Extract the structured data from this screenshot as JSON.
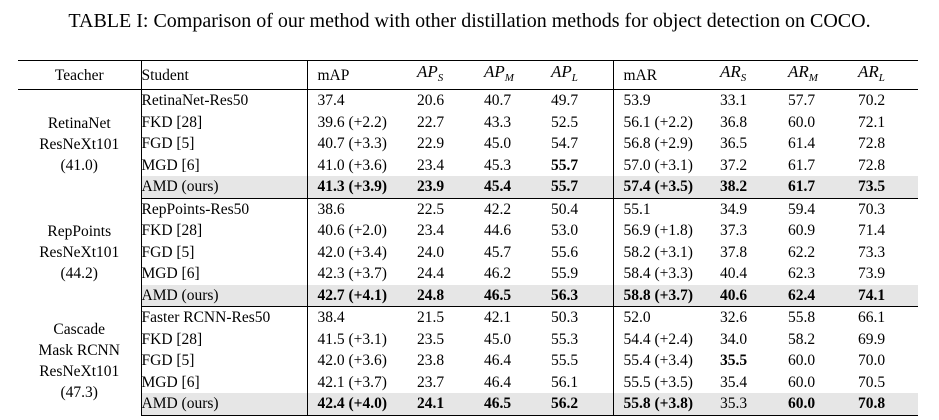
{
  "caption": "TABLE I: Comparison of our method with other distillation methods for object detection on COCO.",
  "headers": {
    "teacher": "Teacher",
    "student": "Student",
    "map": "mAP",
    "aps": {
      "base": "AP",
      "sub": "S"
    },
    "apm": {
      "base": "AP",
      "sub": "M"
    },
    "apl": {
      "base": "AP",
      "sub": "L"
    },
    "mar": "mAR",
    "ars": {
      "base": "AR",
      "sub": "S"
    },
    "arm": {
      "base": "AR",
      "sub": "M"
    },
    "arl": {
      "base": "AR",
      "sub": "L"
    }
  },
  "groups": [
    {
      "teacher_lines": [
        "RetinaNet",
        "ResNeXt101",
        "(41.0)"
      ],
      "rows": [
        {
          "student": "RetinaNet-Res50",
          "map": "37.4",
          "aps": "20.6",
          "apm": "40.7",
          "apl": "49.7",
          "mar": "53.9",
          "ars": "33.1",
          "arm": "57.7",
          "arl": "70.2",
          "bold": []
        },
        {
          "student": "FKD [28]",
          "map": "39.6 (+2.2)",
          "aps": "22.7",
          "apm": "43.3",
          "apl": "52.5",
          "mar": "56.1 (+2.2)",
          "ars": "36.8",
          "arm": "60.0",
          "arl": "72.1",
          "bold": []
        },
        {
          "student": "FGD [5]",
          "map": "40.7 (+3.3)",
          "aps": "22.9",
          "apm": "45.0",
          "apl": "54.7",
          "mar": "56.8 (+2.9)",
          "ars": "36.5",
          "arm": "61.4",
          "arl": "72.8",
          "bold": []
        },
        {
          "student": "MGD [6]",
          "map": "41.0 (+3.6)",
          "aps": "23.4",
          "apm": "45.3",
          "apl": "55.7",
          "mar": "57.0 (+3.1)",
          "ars": "37.2",
          "arm": "61.7",
          "arl": "72.8",
          "bold": [
            "apl"
          ]
        },
        {
          "student": "AMD (ours)",
          "map": "41.3 (+3.9)",
          "aps": "23.9",
          "apm": "45.4",
          "apl": "55.7",
          "mar": "57.4 (+3.5)",
          "ars": "38.2",
          "arm": "61.7",
          "arl": "73.5",
          "bold": [
            "map",
            "aps",
            "apm",
            "apl",
            "mar",
            "ars",
            "arm",
            "arl"
          ],
          "highlight": true
        }
      ]
    },
    {
      "teacher_lines": [
        "RepPoints",
        "ResNeXt101",
        "(44.2)"
      ],
      "rows": [
        {
          "student": "RepPoints-Res50",
          "map": "38.6",
          "aps": "22.5",
          "apm": "42.2",
          "apl": "50.4",
          "mar": "55.1",
          "ars": "34.9",
          "arm": "59.4",
          "arl": "70.3",
          "bold": []
        },
        {
          "student": "FKD [28]",
          "map": "40.6 (+2.0)",
          "aps": "23.4",
          "apm": "44.6",
          "apl": "53.0",
          "mar": "56.9 (+1.8)",
          "ars": "37.3",
          "arm": "60.9",
          "arl": "71.4",
          "bold": []
        },
        {
          "student": "FGD [5]",
          "map": "42.0 (+3.4)",
          "aps": "24.0",
          "apm": "45.7",
          "apl": "55.6",
          "mar": "58.2 (+3.1)",
          "ars": "37.8",
          "arm": "62.2",
          "arl": "73.3",
          "bold": []
        },
        {
          "student": "MGD [6]",
          "map": "42.3 (+3.7)",
          "aps": "24.4",
          "apm": "46.2",
          "apl": "55.9",
          "mar": "58.4 (+3.3)",
          "ars": "40.4",
          "arm": "62.3",
          "arl": "73.9",
          "bold": []
        },
        {
          "student": "AMD (ours)",
          "map": "42.7 (+4.1)",
          "aps": "24.8",
          "apm": "46.5",
          "apl": "56.3",
          "mar": "58.8 (+3.7)",
          "ars": "40.6",
          "arm": "62.4",
          "arl": "74.1",
          "bold": [
            "map",
            "aps",
            "apm",
            "apl",
            "mar",
            "ars",
            "arm",
            "arl"
          ],
          "highlight": true
        }
      ]
    },
    {
      "teacher_lines": [
        "Cascade",
        "Mask RCNN",
        "ResNeXt101",
        "(47.3)"
      ],
      "rows": [
        {
          "student": "Faster RCNN-Res50",
          "map": "38.4",
          "aps": "21.5",
          "apm": "42.1",
          "apl": "50.3",
          "mar": "52.0",
          "ars": "32.6",
          "arm": "55.8",
          "arl": "66.1",
          "bold": []
        },
        {
          "student": "FKD [28]",
          "map": "41.5 (+3.1)",
          "aps": "23.5",
          "apm": "45.0",
          "apl": "55.3",
          "mar": "54.4 (+2.4)",
          "ars": "34.0",
          "arm": "58.2",
          "arl": "69.9",
          "bold": []
        },
        {
          "student": "FGD [5]",
          "map": "42.0 (+3.6)",
          "aps": "23.8",
          "apm": "46.4",
          "apl": "55.5",
          "mar": "55.4 (+3.4)",
          "ars": "35.5",
          "arm": "60.0",
          "arl": "70.0",
          "bold": [
            "ars"
          ]
        },
        {
          "student": "MGD [6]",
          "map": "42.1 (+3.7)",
          "aps": "23.7",
          "apm": "46.4",
          "apl": "56.1",
          "mar": "55.5 (+3.5)",
          "ars": "35.4",
          "arm": "60.0",
          "arl": "70.5",
          "bold": []
        },
        {
          "student": "AMD (ours)",
          "map": "42.4 (+4.0)",
          "aps": "24.1",
          "apm": "46.5",
          "apl": "56.2",
          "mar": "55.8 (+3.8)",
          "ars": "35.3",
          "arm": "60.0",
          "arl": "70.8",
          "bold": [
            "map",
            "aps",
            "apm",
            "apl",
            "mar",
            "arm",
            "arl"
          ],
          "highlight": true
        }
      ]
    }
  ]
}
